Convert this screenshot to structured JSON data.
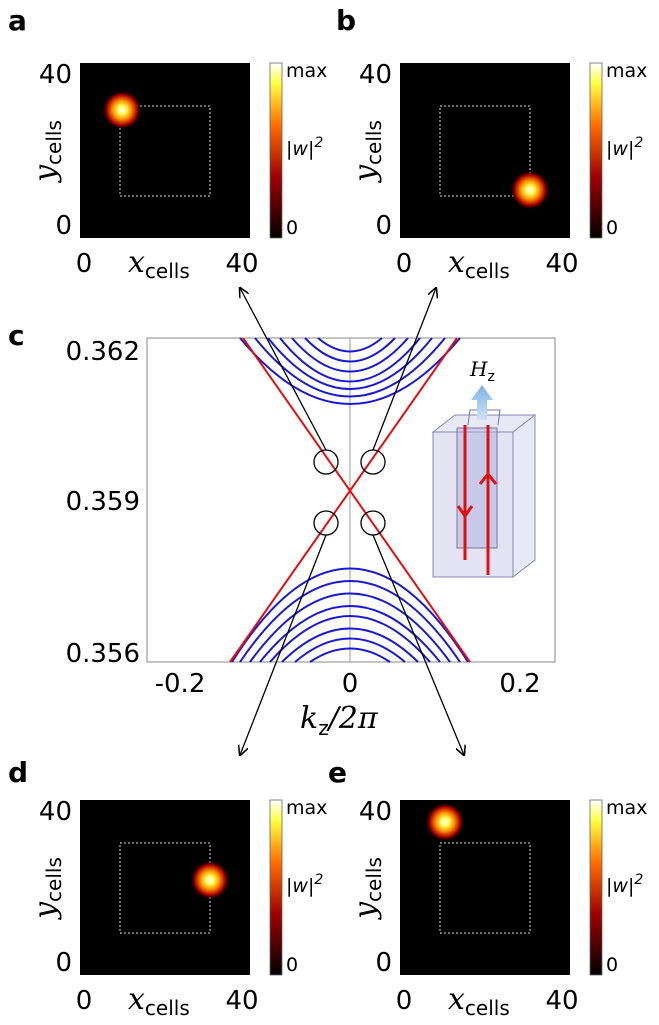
{
  "panels": [
    {
      "letter": "a",
      "y_label": "y",
      "y_label_sub": "cells",
      "x_label": "x",
      "x_label_sub": "cells",
      "x_ticks": [
        0,
        40
      ],
      "y_ticks": [
        0,
        40
      ],
      "colorbar": {
        "max": "max",
        "label": "|w|",
        "label_sup": "2",
        "min": 0
      }
    },
    {
      "letter": "b",
      "y_label": "y",
      "y_label_sub": "cells",
      "x_label": "x",
      "x_label_sub": "cells",
      "x_ticks": [
        0,
        40
      ],
      "y_ticks": [
        0,
        40
      ],
      "colorbar": {
        "max": "max",
        "label": "|w|",
        "label_sup": "2",
        "min": 0
      }
    },
    {
      "letter": "d",
      "y_label": "y",
      "y_label_sub": "cells",
      "x_label": "x",
      "x_label_sub": "cells",
      "x_ticks": [
        0,
        40
      ],
      "y_ticks": [
        0,
        40
      ],
      "colorbar": {
        "max": "max",
        "label": "|w|",
        "label_sup": "2",
        "min": 0
      }
    },
    {
      "letter": "e",
      "y_label": "y",
      "y_label_sub": "cells",
      "x_label": "x",
      "x_label_sub": "cells",
      "x_ticks": [
        0,
        40
      ],
      "y_ticks": [
        0,
        40
      ],
      "colorbar": {
        "max": "max",
        "label": "|w|",
        "label_sup": "2",
        "min": 0
      }
    }
  ],
  "band_plot": {
    "letter": "c",
    "y_ticks": [
      0.362,
      0.359,
      0.356
    ],
    "x_ticks": [
      -0.2,
      0,
      0.2
    ],
    "x_label": "k",
    "x_label_sub": "z",
    "x_label_rest": "/2π",
    "inset_label": "H",
    "inset_label_sub": "z"
  }
}
